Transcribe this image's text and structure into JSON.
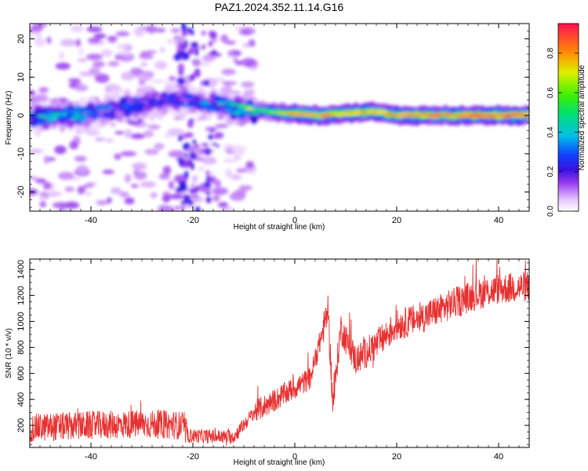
{
  "title": "PAZ1.2024.352.11.14.G16",
  "chart_data": [
    {
      "type": "heatmap",
      "xlabel": "Height of straight line (km)",
      "ylabel": "Frequency (Hz)",
      "xlim": [
        -52,
        46
      ],
      "ylim": [
        -25,
        24
      ],
      "xticks": [
        -40,
        -20,
        0,
        20,
        40
      ],
      "yticks": [
        -20,
        -10,
        0,
        10,
        20
      ],
      "colorbar": {
        "label": "Normalized spectral amplitude",
        "range": [
          0,
          0.95
        ],
        "ticks": [
          0.0,
          0.2,
          0.4,
          0.6,
          0.8
        ],
        "tick_labels": [
          "0.0",
          "0.2",
          "0.4",
          "0.6",
          "0.8"
        ]
      },
      "ridge": [
        {
          "x": -52,
          "f": -1,
          "amp": 0.35
        },
        {
          "x": -45,
          "f": 0,
          "amp": 0.4
        },
        {
          "x": -38,
          "f": 1,
          "amp": 0.3
        },
        {
          "x": -30,
          "f": 3,
          "amp": 0.3
        },
        {
          "x": -24,
          "f": 4,
          "amp": 0.25
        },
        {
          "x": -14,
          "f": 3,
          "amp": 0.35
        },
        {
          "x": -10,
          "f": 1.5,
          "amp": 0.5
        },
        {
          "x": -5,
          "f": 1,
          "amp": 0.6
        },
        {
          "x": 0,
          "f": 0.5,
          "amp": 0.85
        },
        {
          "x": 5,
          "f": 0,
          "amp": 0.9
        },
        {
          "x": 10,
          "f": 0.5,
          "amp": 0.85
        },
        {
          "x": 15,
          "f": 1,
          "amp": 0.85
        },
        {
          "x": 20,
          "f": 0,
          "amp": 0.9
        },
        {
          "x": 30,
          "f": 0,
          "amp": 0.95
        },
        {
          "x": 40,
          "f": 0,
          "amp": 0.95
        },
        {
          "x": 46,
          "f": 0,
          "amp": 0.95
        }
      ],
      "grid": false,
      "legend": "colorbar right"
    },
    {
      "type": "line",
      "xlabel": "Height of straight line (km)",
      "ylabel": "SNR (10 * v/v)",
      "xlim": [
        -52,
        46
      ],
      "ylim": [
        30,
        1480
      ],
      "xticks": [
        -40,
        -20,
        0,
        20,
        40
      ],
      "yticks": [
        200,
        400,
        600,
        800,
        1000,
        1200,
        1400
      ],
      "color": "#e83030",
      "trend": [
        {
          "x": -52,
          "y": 180
        },
        {
          "x": -40,
          "y": 200
        },
        {
          "x": -30,
          "y": 210
        },
        {
          "x": -22,
          "y": 200
        },
        {
          "x": -21,
          "y": 120
        },
        {
          "x": -12,
          "y": 110
        },
        {
          "x": -8,
          "y": 300
        },
        {
          "x": -2,
          "y": 440
        },
        {
          "x": 3,
          "y": 560
        },
        {
          "x": 5,
          "y": 850
        },
        {
          "x": 6.5,
          "y": 1080
        },
        {
          "x": 7.5,
          "y": 350
        },
        {
          "x": 9,
          "y": 950
        },
        {
          "x": 12,
          "y": 700
        },
        {
          "x": 16,
          "y": 820
        },
        {
          "x": 20,
          "y": 970
        },
        {
          "x": 25,
          "y": 1030
        },
        {
          "x": 30,
          "y": 1120
        },
        {
          "x": 35,
          "y": 1200
        },
        {
          "x": 40,
          "y": 1250
        },
        {
          "x": 46,
          "y": 1270
        }
      ],
      "grid": false,
      "legend": "none"
    }
  ]
}
